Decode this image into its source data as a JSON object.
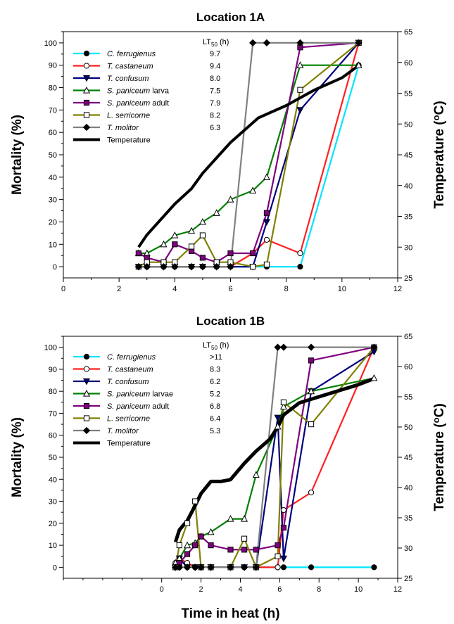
{
  "x_axis_title": "Time in heat (h)",
  "chart_data": [
    {
      "type": "line",
      "title": "Location 1A",
      "xlabel": "",
      "ylabel": "Mortality (%)",
      "y2label_main": "Temperature (",
      "y2label_sup": "o",
      "y2label_end": "C)",
      "xlim": [
        0,
        12
      ],
      "ylim": [
        -5,
        105
      ],
      "y2lim": [
        25,
        65
      ],
      "x_ticks": [
        "0",
        "2",
        "4",
        "6",
        "8",
        "10",
        "12"
      ],
      "y_ticks": [
        "0",
        "10",
        "20",
        "30",
        "40",
        "50",
        "60",
        "70",
        "80",
        "90",
        "100"
      ],
      "y2_ticks": [
        "25",
        "30",
        "35",
        "40",
        "45",
        "50",
        "55",
        "60",
        "65"
      ],
      "lt_header_main": "LT",
      "lt_header_sub": "50",
      "lt_header_end": " (h)",
      "legend_placement": "top-left",
      "series": [
        {
          "name": "C. ferrugienus",
          "name_main": "C. ferrugienus",
          "name_tail": "",
          "lt50": "9.7",
          "color": "#00e5ff",
          "marker": "circle",
          "fill": "#000000",
          "axis": "left",
          "x": [
            2.7,
            3.0,
            3.6,
            4.0,
            4.6,
            5.0,
            5.5,
            6.0,
            6.8,
            7.3,
            8.5,
            10.6
          ],
          "y": [
            0,
            0,
            0,
            0,
            0,
            0,
            0,
            0,
            0,
            0,
            0,
            90
          ]
        },
        {
          "name": "T. castaneum",
          "name_main": "T. castaneum",
          "name_tail": "",
          "lt50": "9.4",
          "color": "#ff2020",
          "marker": "circle",
          "fill": "#ffffff",
          "axis": "left",
          "x": [
            2.7,
            3.0,
            3.6,
            4.0,
            4.6,
            5.0,
            5.5,
            6.0,
            6.8,
            7.3,
            8.5,
            10.6
          ],
          "y": [
            0,
            0,
            0,
            0,
            0,
            0,
            0,
            0,
            6,
            12,
            6,
            100
          ]
        },
        {
          "name": "T. confusum",
          "name_main": "T. confusum",
          "name_tail": "",
          "lt50": "8.0",
          "color": "#000080",
          "marker": "triangle-down",
          "fill": "#000080",
          "axis": "left",
          "x": [
            2.7,
            3.0,
            3.6,
            4.0,
            4.6,
            5.0,
            5.5,
            6.0,
            6.8,
            7.3,
            8.5,
            10.6
          ],
          "y": [
            0,
            0,
            0,
            0,
            0,
            0,
            0,
            0,
            0,
            20,
            70,
            100
          ]
        },
        {
          "name": "S. paniceum larva",
          "name_main": "S. paniceum",
          "name_tail": " larva",
          "lt50": "7.5",
          "color": "#008000",
          "marker": "triangle-up",
          "fill": "#ffffff",
          "axis": "left",
          "x": [
            2.7,
            3.0,
            3.6,
            4.0,
            4.6,
            5.0,
            5.5,
            6.0,
            6.8,
            7.3,
            8.5,
            10.6
          ],
          "y": [
            6,
            6,
            10,
            14,
            16,
            20,
            24,
            30,
            34,
            40,
            90,
            90
          ]
        },
        {
          "name": "S. paniceum adult",
          "name_main": "S. paniceum",
          "name_tail": " adult",
          "lt50": "7.9",
          "color": "#800080",
          "marker": "square",
          "fill": "#800080",
          "axis": "left",
          "x": [
            2.7,
            3.0,
            3.6,
            4.0,
            4.6,
            5.0,
            5.5,
            6.0,
            6.8,
            7.3,
            8.5,
            10.6
          ],
          "y": [
            6,
            4,
            2,
            10,
            7,
            4,
            2,
            6,
            6,
            24,
            98,
            100
          ]
        },
        {
          "name": "L. serricorne",
          "name_main": "L. serricorne",
          "name_tail": "",
          "lt50": "8.2",
          "color": "#808000",
          "marker": "square",
          "fill": "#ffffff",
          "axis": "left",
          "x": [
            2.7,
            3.0,
            3.6,
            4.0,
            4.6,
            5.0,
            5.5,
            6.0,
            6.8,
            7.3,
            8.5,
            10.6
          ],
          "y": [
            0,
            2,
            2,
            2,
            9,
            14,
            2,
            2,
            0,
            1,
            79,
            100
          ]
        },
        {
          "name": "T. molitor",
          "name_main": "T. molitor",
          "name_tail": "",
          "lt50": "6.3",
          "color": "#808080",
          "marker": "diamond",
          "fill": "#000000",
          "axis": "left",
          "x": [
            2.7,
            3.0,
            3.6,
            4.0,
            4.6,
            5.0,
            5.5,
            6.0,
            6.8,
            7.3,
            8.5,
            10.6
          ],
          "y": [
            0,
            0,
            0,
            0,
            0,
            0,
            0,
            0,
            100,
            100,
            100,
            100
          ]
        },
        {
          "name": "Temperature",
          "name_main": "Temperature",
          "name_tail": "",
          "lt50": "",
          "color": "#000000",
          "marker": "none",
          "fill": "none",
          "axis": "right",
          "width": 4,
          "x": [
            2.7,
            3.0,
            3.6,
            4.0,
            4.6,
            5.0,
            5.5,
            6.0,
            6.5,
            7.0,
            8.0,
            9.0,
            10.0,
            10.6
          ],
          "y": [
            30,
            32,
            35,
            37,
            39.5,
            42,
            44.5,
            47,
            49,
            51,
            53,
            55.5,
            57.5,
            59.5
          ]
        }
      ]
    },
    {
      "type": "line",
      "title": "Location 1B",
      "xlabel": "Time in heat (h)",
      "ylabel": "Mortality (%)",
      "y2label_main": "Temperature (",
      "y2label_sup": "o",
      "y2label_end": "C)",
      "xlim": [
        -5,
        12
      ],
      "ylim": [
        -5,
        105
      ],
      "y2lim": [
        25,
        65
      ],
      "x_ticks": [
        "0",
        "2",
        "4",
        "6",
        "8",
        "10",
        "12"
      ],
      "y_ticks": [
        "0",
        "10",
        "20",
        "30",
        "40",
        "50",
        "60",
        "70",
        "80",
        "90",
        "100"
      ],
      "y2_ticks": [
        "25",
        "30",
        "35",
        "40",
        "45",
        "50",
        "55",
        "60",
        "65"
      ],
      "lt_header_main": "LT",
      "lt_header_sub": "50",
      "lt_header_end": " (h)",
      "legend_placement": "top-left",
      "series": [
        {
          "name": "C. ferrugienus",
          "name_main": "C. ferrugienus",
          "name_tail": "",
          "lt50": ">11",
          "color": "#00e5ff",
          "marker": "circle",
          "fill": "#000000",
          "axis": "left",
          "x": [
            0.7,
            0.9,
            1.3,
            1.7,
            2.0,
            2.5,
            3.5,
            4.2,
            4.8,
            5.9,
            6.2,
            7.6,
            10.8
          ],
          "y": [
            0,
            0,
            0,
            0,
            0,
            0,
            0,
            0,
            0,
            0,
            0,
            0,
            0
          ]
        },
        {
          "name": "T. castaneum",
          "name_main": "T. castaneum",
          "name_tail": "",
          "lt50": "8.3",
          "color": "#ff2020",
          "marker": "circle",
          "fill": "#ffffff",
          "axis": "left",
          "x": [
            0.7,
            0.9,
            1.3,
            1.7,
            2.0,
            2.5,
            3.5,
            4.2,
            4.8,
            5.9,
            6.2,
            7.6,
            10.8
          ],
          "y": [
            2,
            4,
            2,
            0,
            0,
            0,
            0,
            0,
            0,
            0,
            26,
            34,
            100
          ]
        },
        {
          "name": "T. confusum",
          "name_main": "T. confusum",
          "name_tail": "",
          "lt50": "6.2",
          "color": "#000080",
          "marker": "triangle-down",
          "fill": "#000080",
          "axis": "left",
          "x": [
            0.7,
            0.9,
            1.3,
            1.7,
            2.0,
            2.5,
            3.5,
            4.2,
            4.8,
            5.9,
            6.2,
            7.6,
            10.8
          ],
          "y": [
            0,
            4,
            0,
            0,
            0,
            0,
            0,
            0,
            0,
            68,
            4,
            80,
            98
          ]
        },
        {
          "name": "S. paniceum larvae",
          "name_main": "S. paniceum",
          "name_tail": " larvae",
          "lt50": "5.2",
          "color": "#008000",
          "marker": "triangle-up",
          "fill": "#ffffff",
          "axis": "left",
          "x": [
            0.7,
            0.9,
            1.3,
            1.7,
            2.0,
            2.5,
            3.5,
            4.2,
            4.8,
            5.9,
            6.2,
            7.6,
            10.8
          ],
          "y": [
            2,
            4,
            10,
            11,
            14,
            16,
            22,
            22,
            42,
            64,
            73,
            80,
            86
          ]
        },
        {
          "name": "S. paniceum adult",
          "name_main": "S. paniceum",
          "name_tail": " adult",
          "lt50": "6.8",
          "color": "#800080",
          "marker": "square",
          "fill": "#800080",
          "axis": "left",
          "x": [
            0.7,
            0.9,
            1.3,
            1.7,
            2.0,
            2.5,
            3.5,
            4.2,
            4.8,
            5.9,
            6.2,
            7.6,
            10.8
          ],
          "y": [
            0,
            2,
            6,
            10,
            14,
            10,
            8,
            8,
            8,
            10,
            18,
            94,
            100
          ]
        },
        {
          "name": "L. serricorne",
          "name_main": "L. serricorne",
          "name_tail": "",
          "lt50": "6.4",
          "color": "#808000",
          "marker": "square",
          "fill": "#ffffff",
          "axis": "left",
          "x": [
            0.7,
            0.9,
            1.3,
            1.7,
            2.0,
            2.5,
            3.5,
            4.2,
            4.8,
            5.9,
            6.2,
            7.6,
            10.8
          ],
          "y": [
            0,
            10,
            20,
            30,
            0,
            0,
            0,
            13,
            0,
            5,
            75,
            65,
            100
          ]
        },
        {
          "name": "T. molitor",
          "name_main": "T. molitor",
          "name_tail": "",
          "lt50": "5.3",
          "color": "#808080",
          "marker": "diamond",
          "fill": "#000000",
          "axis": "left",
          "x": [
            0.7,
            0.9,
            1.3,
            1.7,
            2.0,
            2.5,
            3.5,
            4.2,
            4.8,
            5.9,
            6.2,
            7.6,
            10.8
          ],
          "y": [
            0,
            0,
            0,
            0,
            0,
            0,
            0,
            0,
            0,
            100,
            100,
            100,
            100
          ]
        },
        {
          "name": "Temperature",
          "name_main": "Temperature",
          "name_tail": "",
          "lt50": "",
          "color": "#000000",
          "marker": "none",
          "fill": "none",
          "axis": "right",
          "width": 5,
          "x": [
            0.7,
            0.9,
            1.3,
            1.7,
            2.0,
            2.5,
            3.0,
            3.5,
            4.2,
            4.8,
            5.5,
            5.9,
            6.2,
            7.0,
            8.0,
            9.0,
            10.0,
            10.8
          ],
          "y": [
            31,
            33,
            34.5,
            37,
            39,
            41,
            41,
            41.3,
            44,
            46,
            48,
            50,
            52,
            54,
            55,
            56,
            57,
            58
          ]
        }
      ]
    }
  ]
}
